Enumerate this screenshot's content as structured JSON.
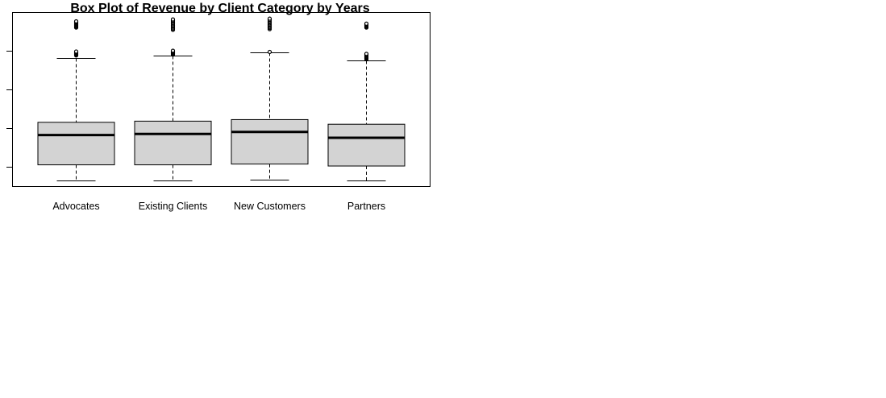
{
  "chart_data": {
    "type": "boxplot",
    "title": "Box Plot of Revenue by Client Category by Years",
    "xlabel": "",
    "ylabel": "",
    "y_tick_labels_visible": false,
    "grid": false,
    "legend": "none",
    "ylim": [
      0.0,
      4.5
    ],
    "y_ticks": [
      0.5,
      1.5,
      2.5,
      3.5
    ],
    "categories": [
      "Advocates",
      "Existing Clients",
      "New Customers",
      "Partners"
    ],
    "box_fill_color": "#d3d3d3",
    "line_color": "#000000",
    "boxes": [
      {
        "category": "Advocates",
        "whisker_low": 0.15,
        "q1": 0.55,
        "median": 1.32,
        "q3": 1.65,
        "whisker_high": 3.32,
        "outliers": [
          3.38,
          3.4,
          3.42,
          3.44,
          3.46,
          3.48,
          4.1,
          4.12,
          4.14,
          4.16,
          4.18,
          4.2,
          4.22,
          4.24,
          4.26
        ]
      },
      {
        "category": "Existing Clients",
        "whisker_low": 0.15,
        "q1": 0.55,
        "median": 1.35,
        "q3": 1.68,
        "whisker_high": 3.38,
        "outliers": [
          3.4,
          3.42,
          3.44,
          3.46,
          3.48,
          3.5,
          4.04,
          4.07,
          4.1,
          4.13,
          4.16,
          4.19,
          4.22,
          4.25,
          4.28,
          4.31
        ]
      },
      {
        "category": "New Customers",
        "whisker_low": 0.17,
        "q1": 0.57,
        "median": 1.4,
        "q3": 1.72,
        "whisker_high": 3.45,
        "outliers": [
          3.47,
          4.06,
          4.09,
          4.12,
          4.15,
          4.18,
          4.21,
          4.24,
          4.27,
          4.3,
          4.33
        ]
      },
      {
        "category": "Partners",
        "whisker_low": 0.15,
        "q1": 0.52,
        "median": 1.25,
        "q3": 1.6,
        "whisker_high": 3.25,
        "outliers": [
          3.28,
          3.3,
          3.32,
          3.34,
          3.36,
          3.38,
          3.4,
          3.42,
          4.1,
          4.12,
          4.14,
          4.16,
          4.18,
          4.2
        ]
      }
    ]
  }
}
